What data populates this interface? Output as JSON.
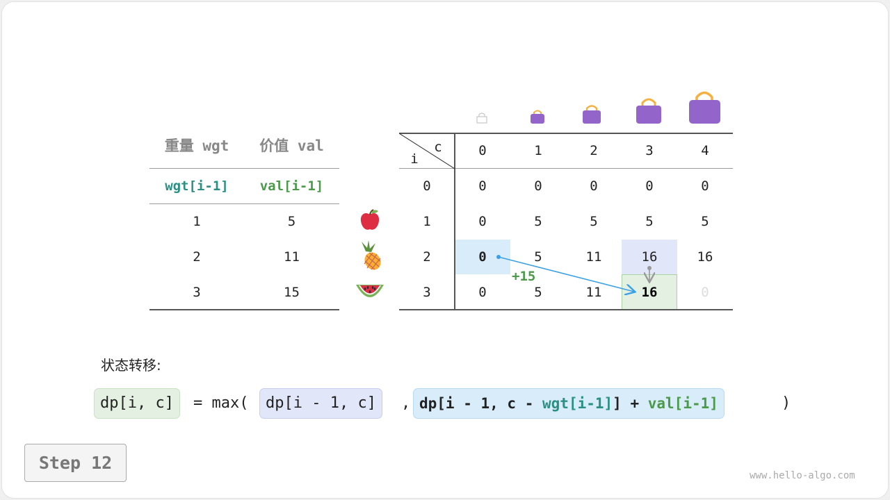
{
  "items_table": {
    "headers": [
      "重量 wgt",
      "价值 val"
    ],
    "subheaders": [
      "wgt[i-1]",
      "val[i-1]"
    ],
    "rows": [
      [
        "1",
        "5"
      ],
      [
        "2",
        "11"
      ],
      [
        "3",
        "15"
      ]
    ],
    "items_icons": [
      "apple-icon",
      "pineapple-icon",
      "watermelon-icon"
    ]
  },
  "dp_table": {
    "corner_row_label": "i",
    "corner_col_label": "c",
    "col_headers": [
      "0",
      "1",
      "2",
      "3",
      "4"
    ],
    "row_headers": [
      "0",
      "1",
      "2",
      "3"
    ],
    "cells": [
      [
        "0",
        "0",
        "0",
        "0",
        "0"
      ],
      [
        "0",
        "5",
        "5",
        "5",
        "5"
      ],
      [
        "0",
        "5",
        "11",
        "16",
        "16"
      ],
      [
        "0",
        "5",
        "11",
        "16",
        "0"
      ]
    ],
    "bag_icons": [
      "bag-empty-icon",
      "bag-icon",
      "bag-icon",
      "bag-icon",
      "bag-icon"
    ],
    "arrow_label": "+15"
  },
  "formula": {
    "title": "状态转移:",
    "lhs": "dp[i, c]",
    "eq": "= max(",
    "opt1": "dp[i - 1, c]",
    "comma": ",",
    "opt2_a": "dp[i - 1, c - ",
    "opt2_wgt": "wgt[i-1]",
    "opt2_b": "] + ",
    "opt2_val": "val[i-1]",
    "close": ")"
  },
  "step_label": "Step 12",
  "watermark": "www.hello-algo.com",
  "colors": {
    "teal": "#2a9083",
    "green": "#4a9a4a",
    "blue_cell": "#d8ecfa",
    "purple_cell": "#e1e6f8",
    "green_cell": "#e4f1e2",
    "bag": "#9365cb",
    "arrow": "#3ba0e6"
  }
}
